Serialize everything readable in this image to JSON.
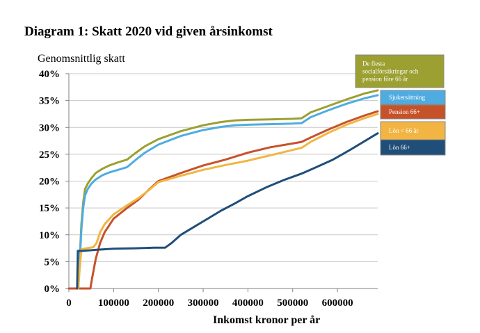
{
  "chart_data": {
    "type": "line",
    "title": "Diagram 1: Skatt 2020 vid given årsinkomst",
    "ylabel": "Genomsnittlig skatt",
    "xlabel": "Inkomst kronor per år",
    "xlim": [
      0,
      690000
    ],
    "ylim": [
      0,
      40
    ],
    "x_ticks": [
      0,
      100000,
      200000,
      300000,
      400000,
      500000,
      600000
    ],
    "y_ticks": [
      0,
      5,
      10,
      15,
      20,
      25,
      30,
      35,
      40
    ],
    "y_tick_labels": [
      "0%",
      "5%",
      "10%",
      "15%",
      "20%",
      "25%",
      "30%",
      "35%",
      "40%"
    ],
    "grid": "horizontal",
    "legend_position": "right",
    "series": [
      {
        "name": "De flesta socialförsäkringar och pension före 66 år",
        "legend_lines": [
          "De flesta",
          "socialförsäkringar och",
          "pension före 66 år"
        ],
        "color": "#9BA031",
        "x": [
          21000,
          24000,
          28000,
          32000,
          36000,
          42000,
          50000,
          60000,
          75000,
          90000,
          110000,
          130000,
          150000,
          170000,
          200000,
          250000,
          300000,
          340000,
          370000,
          400000,
          450000,
          500000,
          520000,
          540000,
          580000,
          620000,
          660000,
          690000
        ],
        "y": [
          0,
          5,
          12,
          16,
          18.5,
          19.5,
          20.5,
          21.5,
          22.3,
          22.9,
          23.5,
          24.0,
          25.3,
          26.5,
          27.8,
          29.3,
          30.4,
          31.0,
          31.3,
          31.4,
          31.5,
          31.6,
          31.7,
          32.8,
          34.0,
          35.2,
          36.3,
          36.9
        ]
      },
      {
        "name": "Sjukersättning",
        "legend_lines": [
          "Sjukersättning"
        ],
        "color": "#4FACE0",
        "x": [
          21000,
          24000,
          28000,
          32000,
          36000,
          42000,
          50000,
          60000,
          75000,
          90000,
          110000,
          130000,
          150000,
          170000,
          200000,
          250000,
          300000,
          340000,
          370000,
          400000,
          450000,
          500000,
          520000,
          540000,
          580000,
          620000,
          660000,
          690000
        ],
        "y": [
          0,
          4.5,
          11,
          15,
          17.3,
          18.5,
          19.5,
          20.3,
          21.1,
          21.6,
          22.1,
          22.6,
          24.0,
          25.3,
          26.8,
          28.4,
          29.5,
          30.1,
          30.4,
          30.5,
          30.6,
          30.7,
          30.8,
          31.9,
          33.2,
          34.4,
          35.4,
          36.0
        ]
      },
      {
        "name": "Pension 66+",
        "legend_lines": [
          "Pension 66+"
        ],
        "color": "#C6522A",
        "x": [
          0,
          48000,
          52000,
          60000,
          70000,
          80000,
          100000,
          130000,
          155000,
          180000,
          200000,
          250000,
          300000,
          350000,
          400000,
          450000,
          500000,
          520000,
          540000,
          580000,
          620000,
          660000,
          690000
        ],
        "y": [
          0,
          0,
          2,
          5.5,
          8.5,
          10.5,
          13.0,
          15.0,
          16.5,
          18.5,
          20.0,
          21.5,
          22.9,
          24.0,
          25.3,
          26.3,
          27.0,
          27.3,
          28.1,
          29.6,
          31.0,
          32.2,
          33.0
        ]
      },
      {
        "name": "Lön < 66 år",
        "legend_lines": [
          "Lön < 66 år"
        ],
        "color": "#F2B543",
        "x": [
          21000,
          24000,
          28000,
          40000,
          55000,
          62000,
          70000,
          80000,
          100000,
          130000,
          155000,
          180000,
          200000,
          250000,
          300000,
          350000,
          400000,
          450000,
          500000,
          520000,
          540000,
          580000,
          620000,
          660000,
          690000
        ],
        "y": [
          0,
          3.5,
          7.3,
          7.5,
          7.7,
          8.5,
          10.5,
          12.0,
          13.8,
          15.5,
          16.8,
          18.4,
          19.8,
          21.0,
          22.1,
          23.0,
          23.8,
          24.8,
          25.8,
          26.2,
          27.3,
          29.0,
          30.5,
          31.7,
          32.5
        ]
      },
      {
        "name": "Lön 66+",
        "legend_lines": [
          "Lön 66+"
        ],
        "color": "#1F4E79",
        "x": [
          18500,
          20000,
          30000,
          60000,
          100000,
          150000,
          190000,
          215000,
          230000,
          250000,
          280000,
          310000,
          340000,
          370000,
          400000,
          440000,
          480000,
          520000,
          550000,
          590000,
          630000,
          660000,
          690000
        ],
        "y": [
          0,
          7.0,
          7.0,
          7.2,
          7.4,
          7.5,
          7.6,
          7.6,
          8.5,
          10.0,
          11.5,
          13.0,
          14.5,
          15.8,
          17.2,
          18.8,
          20.2,
          21.4,
          22.5,
          24.0,
          25.9,
          27.4,
          28.9
        ]
      }
    ]
  }
}
